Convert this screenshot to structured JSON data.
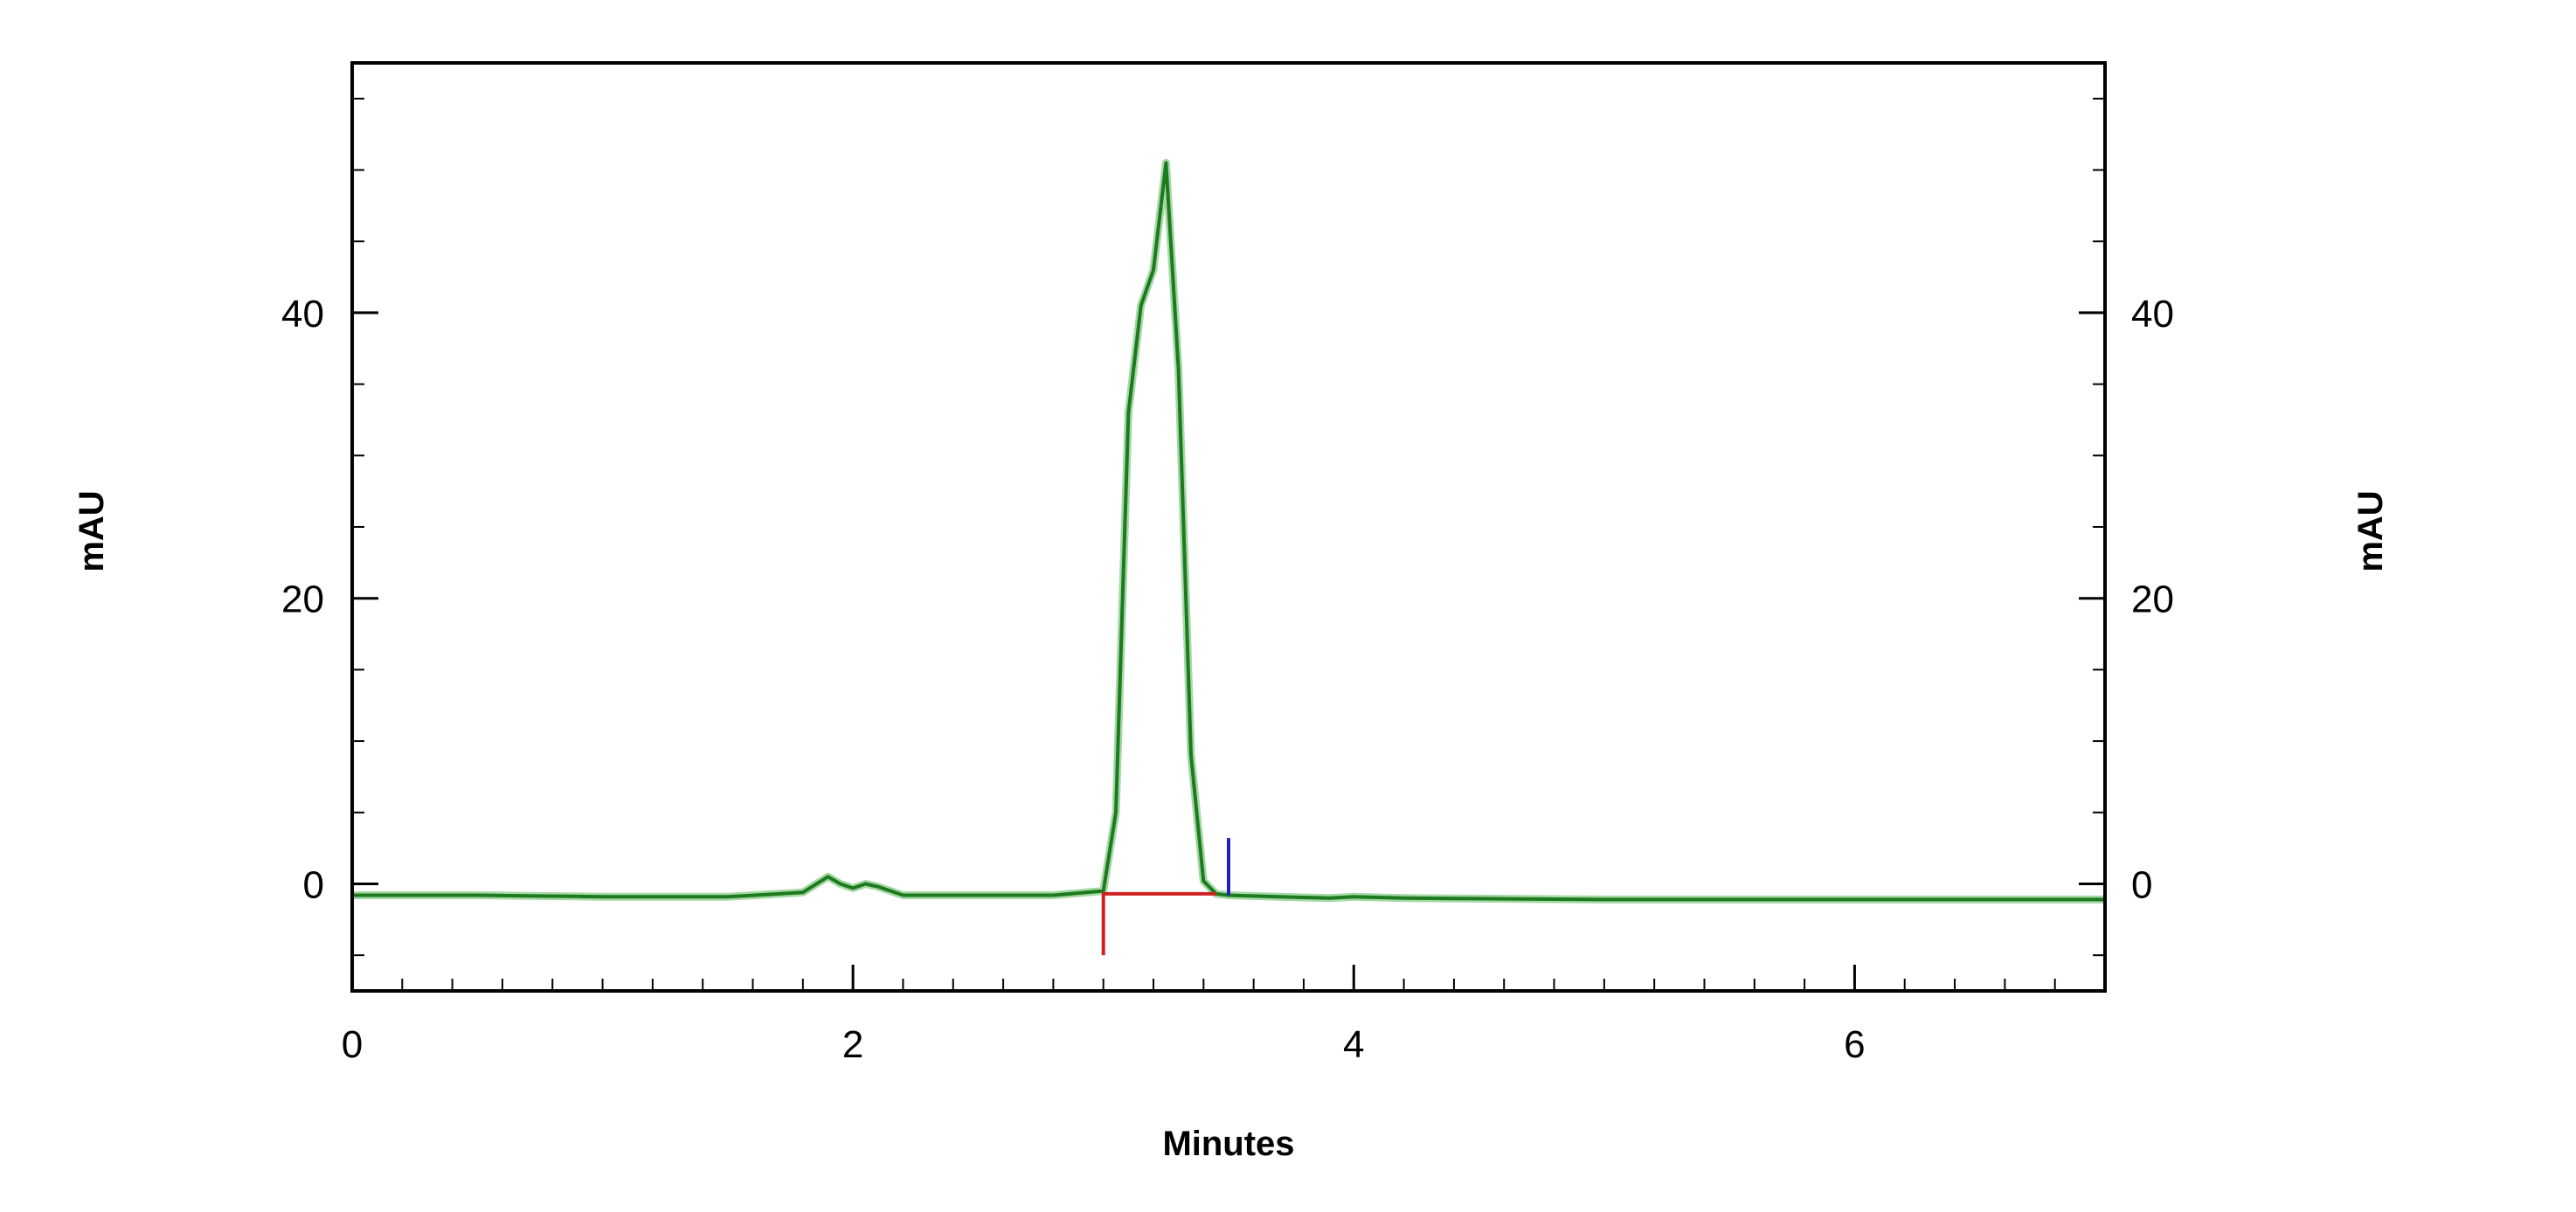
{
  "chart_data": {
    "type": "line",
    "title": "",
    "xlabel": "Minutes",
    "ylabel_left": "mAU",
    "ylabel_right": "mAU",
    "xlim": [
      0,
      7
    ],
    "ylim": [
      -7.5,
      57.5
    ],
    "x_ticks": [
      0,
      2,
      4,
      6
    ],
    "x_tick_labels": [
      "0",
      "2",
      "4",
      "6"
    ],
    "y_ticks": [
      0,
      20,
      40
    ],
    "y_tick_labels": [
      "0",
      "20",
      "40"
    ],
    "grid": false,
    "legend": "none",
    "series": [
      {
        "color": "#1e7a1e",
        "x": [
          0,
          0.5,
          1.0,
          1.5,
          1.8,
          1.9,
          1.95,
          2.0,
          2.05,
          2.1,
          2.2,
          2.5,
          2.8,
          3.0,
          3.05,
          3.1,
          3.15,
          3.2,
          3.25,
          3.3,
          3.35,
          3.4,
          3.45,
          3.5,
          3.7,
          3.9,
          4.0,
          4.2,
          5.0,
          6.0,
          7.0
        ],
        "y": [
          -0.8,
          -0.8,
          -0.9,
          -0.9,
          -0.6,
          0.5,
          0.0,
          -0.3,
          0.0,
          -0.2,
          -0.8,
          -0.8,
          -0.8,
          -0.5,
          5.0,
          33.0,
          40.5,
          43.0,
          50.5,
          36.0,
          9.0,
          0.2,
          -0.7,
          -0.8,
          -0.9,
          -1.0,
          -0.9,
          -1.0,
          -1.1,
          -1.1,
          -1.1
        ]
      }
    ],
    "peak_markers": [
      {
        "x": 3.0,
        "color": "#d02020",
        "y_from": -5.0,
        "y_to": -0.6
      },
      {
        "x": 3.5,
        "color": "#2020c0",
        "y_from": -0.8,
        "y_to": 3.2
      }
    ],
    "baseline_segment": {
      "x_from": 3.0,
      "x_to": 3.45,
      "y": -0.7,
      "color": "#d02020"
    },
    "colors": {
      "frame": "#000000",
      "trace": "#1e7a1e",
      "trace_glow": "#7ec87e"
    }
  }
}
